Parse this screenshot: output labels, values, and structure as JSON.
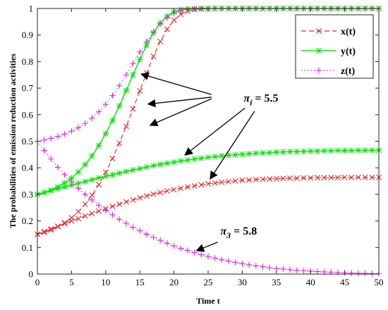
{
  "chart_data": {
    "type": "line",
    "xlabel": "Time t",
    "ylabel": "The probabilities of emission reduction activities",
    "xlim": [
      0,
      50
    ],
    "ylim": [
      0,
      1
    ],
    "xticks": [
      "0",
      "5",
      "10",
      "15",
      "20",
      "25",
      "30",
      "35",
      "40",
      "45",
      "50"
    ],
    "yticks": [
      "0",
      "0.1",
      "0.2",
      "0.3",
      "0.4",
      "0.5",
      "0.6",
      "0.7",
      "0.8",
      "0.9",
      "1"
    ],
    "grid": false,
    "legend_position": "top-right",
    "series": [
      {
        "name": "x(t)",
        "group": "πi = 5.5",
        "color": "#e8262a",
        "line": "dashed",
        "marker": "x",
        "x": [
          0,
          1,
          2,
          3,
          4,
          5,
          6,
          7,
          8,
          9,
          10,
          11,
          12,
          13,
          14,
          15,
          16,
          17,
          18,
          19,
          20,
          21,
          22,
          23,
          24,
          25,
          26,
          27,
          28,
          29,
          30,
          31,
          32,
          33,
          34,
          35,
          36,
          37,
          38,
          39,
          40,
          41,
          42,
          43,
          44,
          45,
          46,
          47,
          48,
          49,
          50
        ],
        "y": [
          0.15,
          0.157,
          0.166,
          0.178,
          0.193,
          0.212,
          0.235,
          0.263,
          0.297,
          0.337,
          0.383,
          0.435,
          0.493,
          0.556,
          0.622,
          0.69,
          0.757,
          0.82,
          0.876,
          0.922,
          0.956,
          0.978,
          0.99,
          0.996,
          0.998,
          0.999,
          1,
          1,
          1,
          1,
          1,
          1,
          1,
          1,
          1,
          1,
          1,
          1,
          1,
          1,
          1,
          1,
          1,
          1,
          1,
          1,
          1,
          1,
          1,
          1,
          1
        ]
      },
      {
        "name": "y(t)",
        "group": "πi = 5.5",
        "color": "#12e012",
        "line": "solid",
        "marker": "*",
        "x": [
          0,
          1,
          2,
          3,
          4,
          5,
          6,
          7,
          8,
          9,
          10,
          11,
          12,
          13,
          14,
          15,
          16,
          17,
          18,
          19,
          20,
          21,
          22,
          23,
          24,
          25,
          26,
          27,
          28,
          29,
          30,
          31,
          32,
          33,
          34,
          35,
          36,
          37,
          38,
          39,
          40,
          41,
          42,
          43,
          44,
          45,
          46,
          47,
          48,
          49,
          50
        ],
        "y": [
          0.3,
          0.307,
          0.316,
          0.328,
          0.343,
          0.361,
          0.384,
          0.412,
          0.445,
          0.484,
          0.529,
          0.578,
          0.633,
          0.691,
          0.75,
          0.808,
          0.862,
          0.908,
          0.945,
          0.971,
          0.987,
          0.995,
          0.998,
          0.999,
          1,
          1,
          1,
          1,
          1,
          1,
          1,
          1,
          1,
          1,
          1,
          1,
          1,
          1,
          1,
          1,
          1,
          1,
          1,
          1,
          1,
          1,
          1,
          1,
          1,
          1,
          1
        ]
      },
      {
        "name": "z(t)",
        "group": "πi = 5.5",
        "color": "#e020e0",
        "line": "dotted",
        "marker": "+",
        "x": [
          0,
          1,
          2,
          3,
          4,
          5,
          6,
          7,
          8,
          9,
          10,
          11,
          12,
          13,
          14,
          15,
          16,
          17,
          18,
          19,
          20,
          21,
          22,
          23,
          24,
          25,
          26,
          27,
          28,
          29,
          30,
          31,
          32,
          33,
          34,
          35,
          36,
          37,
          38,
          39,
          40,
          41,
          42,
          43,
          44,
          45,
          46,
          47,
          48,
          49,
          50
        ],
        "y": [
          0.5,
          0.505,
          0.511,
          0.518,
          0.527,
          0.538,
          0.551,
          0.567,
          0.587,
          0.611,
          0.639,
          0.672,
          0.709,
          0.75,
          0.793,
          0.836,
          0.876,
          0.912,
          0.942,
          0.965,
          0.981,
          0.991,
          0.996,
          0.998,
          0.999,
          1,
          1,
          1,
          1,
          1,
          1,
          1,
          1,
          1,
          1,
          1,
          1,
          1,
          1,
          1,
          1,
          1,
          1,
          1,
          1,
          1,
          1,
          1,
          1,
          1,
          1
        ]
      },
      {
        "name": "x(t)",
        "group": "π3 = 5.8",
        "color": "#e8262a",
        "line": "dashed",
        "marker": "x",
        "x": [
          0,
          1,
          2,
          3,
          4,
          5,
          6,
          7,
          8,
          9,
          10,
          11,
          12,
          13,
          14,
          15,
          16,
          17,
          18,
          19,
          20,
          21,
          22,
          23,
          24,
          25,
          26,
          27,
          28,
          29,
          30,
          31,
          32,
          33,
          34,
          35,
          36,
          37,
          38,
          39,
          40,
          41,
          42,
          43,
          44,
          45,
          46,
          47,
          48,
          49,
          50
        ],
        "y": [
          0.15,
          0.16,
          0.17,
          0.18,
          0.19,
          0.2,
          0.209,
          0.219,
          0.228,
          0.237,
          0.246,
          0.255,
          0.263,
          0.272,
          0.279,
          0.287,
          0.294,
          0.301,
          0.307,
          0.313,
          0.318,
          0.323,
          0.328,
          0.332,
          0.336,
          0.34,
          0.343,
          0.346,
          0.348,
          0.351,
          0.353,
          0.354,
          0.356,
          0.357,
          0.358,
          0.359,
          0.36,
          0.361,
          0.361,
          0.362,
          0.362,
          0.363,
          0.363,
          0.363,
          0.363,
          0.364,
          0.364,
          0.364,
          0.364,
          0.364,
          0.364
        ]
      },
      {
        "name": "y(t)",
        "group": "π3 = 5.8",
        "color": "#12e012",
        "line": "solid",
        "marker": "*",
        "x": [
          0,
          1,
          2,
          3,
          4,
          5,
          6,
          7,
          8,
          9,
          10,
          11,
          12,
          13,
          14,
          15,
          16,
          17,
          18,
          19,
          20,
          21,
          22,
          23,
          24,
          25,
          26,
          27,
          28,
          29,
          30,
          31,
          32,
          33,
          34,
          35,
          36,
          37,
          38,
          39,
          40,
          41,
          42,
          43,
          44,
          45,
          46,
          47,
          48,
          49,
          50
        ],
        "y": [
          0.3,
          0.307,
          0.314,
          0.321,
          0.328,
          0.335,
          0.342,
          0.348,
          0.355,
          0.362,
          0.368,
          0.374,
          0.38,
          0.386,
          0.392,
          0.397,
          0.403,
          0.408,
          0.413,
          0.417,
          0.421,
          0.426,
          0.429,
          0.433,
          0.436,
          0.439,
          0.442,
          0.445,
          0.447,
          0.449,
          0.451,
          0.453,
          0.455,
          0.456,
          0.457,
          0.459,
          0.46,
          0.461,
          0.461,
          0.462,
          0.463,
          0.463,
          0.464,
          0.464,
          0.465,
          0.465,
          0.465,
          0.466,
          0.466,
          0.466,
          0.466
        ]
      },
      {
        "name": "z(t)",
        "group": "π3 = 5.8",
        "color": "#e020e0",
        "line": "dotted",
        "marker": "+",
        "x": [
          0,
          1,
          2,
          3,
          4,
          5,
          6,
          7,
          8,
          9,
          10,
          11,
          12,
          13,
          14,
          15,
          16,
          17,
          18,
          19,
          20,
          21,
          22,
          23,
          24,
          25,
          26,
          27,
          28,
          29,
          30,
          31,
          32,
          33,
          34,
          35,
          36,
          37,
          38,
          39,
          40,
          41,
          42,
          43,
          44,
          45,
          46,
          47,
          48,
          49,
          50
        ],
        "y": [
          0.5,
          0.465,
          0.433,
          0.402,
          0.374,
          0.348,
          0.323,
          0.3,
          0.279,
          0.259,
          0.24,
          0.223,
          0.206,
          0.191,
          0.176,
          0.163,
          0.15,
          0.138,
          0.127,
          0.116,
          0.106,
          0.097,
          0.089,
          0.081,
          0.073,
          0.066,
          0.06,
          0.054,
          0.049,
          0.044,
          0.039,
          0.035,
          0.031,
          0.028,
          0.024,
          0.021,
          0.019,
          0.016,
          0.014,
          0.012,
          0.011,
          0.009,
          0.008,
          0.007,
          0.006,
          0.005,
          0.004,
          0.003,
          0.003,
          0.002,
          0.002
        ]
      }
    ],
    "legend": [
      {
        "label": "x(t)",
        "color": "#e8262a",
        "line": "dashed",
        "marker": "x"
      },
      {
        "label": "y(t)",
        "color": "#12e012",
        "line": "solid",
        "marker": "*"
      },
      {
        "label": "z(t)",
        "color": "#e020e0",
        "line": "dotted",
        "marker": "+"
      }
    ],
    "annotations": [
      {
        "symbol": "π",
        "subscript": "i",
        "rest": " = 5.5",
        "text_x": 30.2,
        "text_y": 0.648,
        "arrows": [
          [
            25.5,
            0.676,
            15.2,
            0.753
          ],
          [
            25.5,
            0.666,
            16.2,
            0.64
          ],
          [
            25.5,
            0.66,
            16.5,
            0.56
          ],
          [
            30.4,
            0.625,
            21.6,
            0.448
          ],
          [
            31.8,
            0.613,
            25.3,
            0.358
          ]
        ]
      },
      {
        "symbol": "π",
        "subscript": "3",
        "rest": " = 5.8",
        "text_x": 26.8,
        "text_y": 0.148,
        "arrows": [
          [
            26.4,
            0.12,
            23.3,
            0.088
          ]
        ]
      }
    ]
  }
}
